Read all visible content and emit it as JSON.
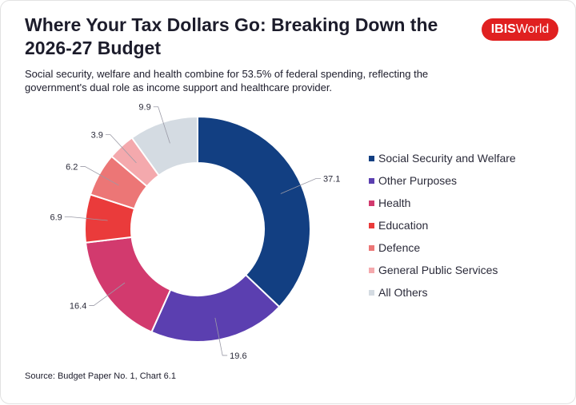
{
  "header": {
    "title": "Where Your Tax Dollars Go: Breaking Down the 2026-27 Budget",
    "subtitle": "Social security, welfare and health combine for 53.5% of federal spending, reflecting the government's dual role as income support and healthcare provider."
  },
  "logo": {
    "part1": "IBIS",
    "part2": "World",
    "color": "#e02020"
  },
  "source": "Source: Budget Paper No. 1, Chart 6.1",
  "chart_data": {
    "type": "pie",
    "variant": "donut",
    "categories": [
      "Social Security and Welfare",
      "Other Purposes",
      "Health",
      "Education",
      "Defence",
      "General Public Services",
      "All Others"
    ],
    "values": [
      37.1,
      19.6,
      16.4,
      6.9,
      6.2,
      3.9,
      9.9
    ],
    "value_labels": [
      "37.1",
      "19.6",
      "16.4",
      "6.9",
      "6.2",
      "3.9",
      "9.9"
    ],
    "colors": [
      "#123f82",
      "#5b3fb0",
      "#d23a6e",
      "#ea3b3b",
      "#ec7676",
      "#f4a9ad",
      "#d4dbe2"
    ],
    "legend": "right"
  }
}
